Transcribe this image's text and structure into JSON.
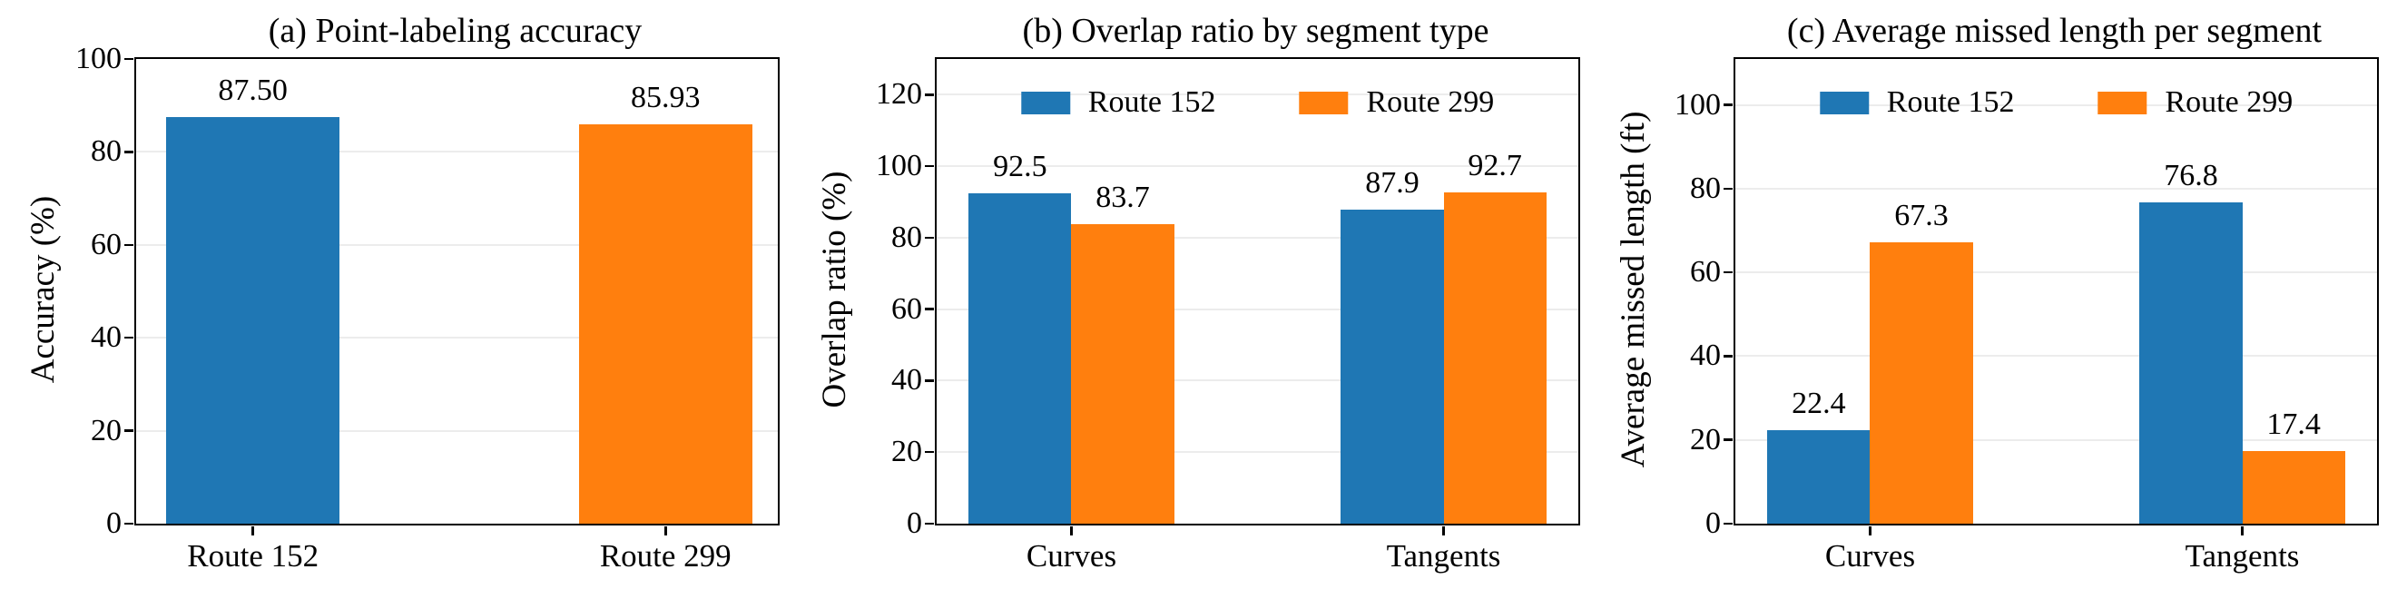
{
  "figure": {
    "background": "#ffffff",
    "grid_color": "#ececec",
    "spine_color": "#000000",
    "accent_blue": "#1f77b4",
    "accent_orange": "#ff7f0e"
  },
  "chart_data": [
    {
      "id": "a",
      "type": "bar",
      "title": "(a) Point-labeling accuracy",
      "xlabel": "",
      "ylabel": "Accuracy (%)",
      "categories": [
        "Route 152",
        "Route 299"
      ],
      "values": [
        87.5,
        85.93
      ],
      "value_labels": [
        "87.50",
        "85.93"
      ],
      "bar_colors": [
        "#1f77b4",
        "#ff7f0e"
      ],
      "ylim": [
        0,
        100
      ],
      "yticks": [
        0,
        20,
        40,
        60,
        80,
        100
      ],
      "grid": "horizontal",
      "legend": null
    },
    {
      "id": "b",
      "type": "bar",
      "title": "(b) Overlap ratio by segment type",
      "xlabel": "",
      "ylabel": "Overlap ratio (%)",
      "categories": [
        "Curves",
        "Tangents"
      ],
      "series": [
        {
          "name": "Route 152",
          "color": "#1f77b4",
          "values": [
            92.5,
            87.9
          ],
          "value_labels": [
            "92.5",
            "87.9"
          ]
        },
        {
          "name": "Route 299",
          "color": "#ff7f0e",
          "values": [
            83.7,
            92.7
          ],
          "value_labels": [
            "83.7",
            "92.7"
          ]
        }
      ],
      "ylim": [
        0,
        130
      ],
      "yticks": [
        0,
        20,
        40,
        60,
        80,
        100,
        120
      ],
      "grid": "horizontal",
      "legend": {
        "position": "upper center",
        "entries": [
          "Route 152",
          "Route 299"
        ]
      }
    },
    {
      "id": "c",
      "type": "bar",
      "title": "(c) Average missed length per segment",
      "xlabel": "",
      "ylabel": "Average missed length (ft)",
      "categories": [
        "Curves",
        "Tangents"
      ],
      "series": [
        {
          "name": "Route 152",
          "color": "#1f77b4",
          "values": [
            22.4,
            76.8
          ],
          "value_labels": [
            "22.4",
            "76.8"
          ]
        },
        {
          "name": "Route 299",
          "color": "#ff7f0e",
          "values": [
            67.3,
            17.4
          ],
          "value_labels": [
            "67.3",
            "17.4"
          ]
        }
      ],
      "ylim": [
        0,
        111
      ],
      "yticks": [
        0,
        20,
        40,
        60,
        80,
        100
      ],
      "grid": "horizontal",
      "legend": {
        "position": "upper center",
        "entries": [
          "Route 152",
          "Route 299"
        ]
      }
    }
  ]
}
